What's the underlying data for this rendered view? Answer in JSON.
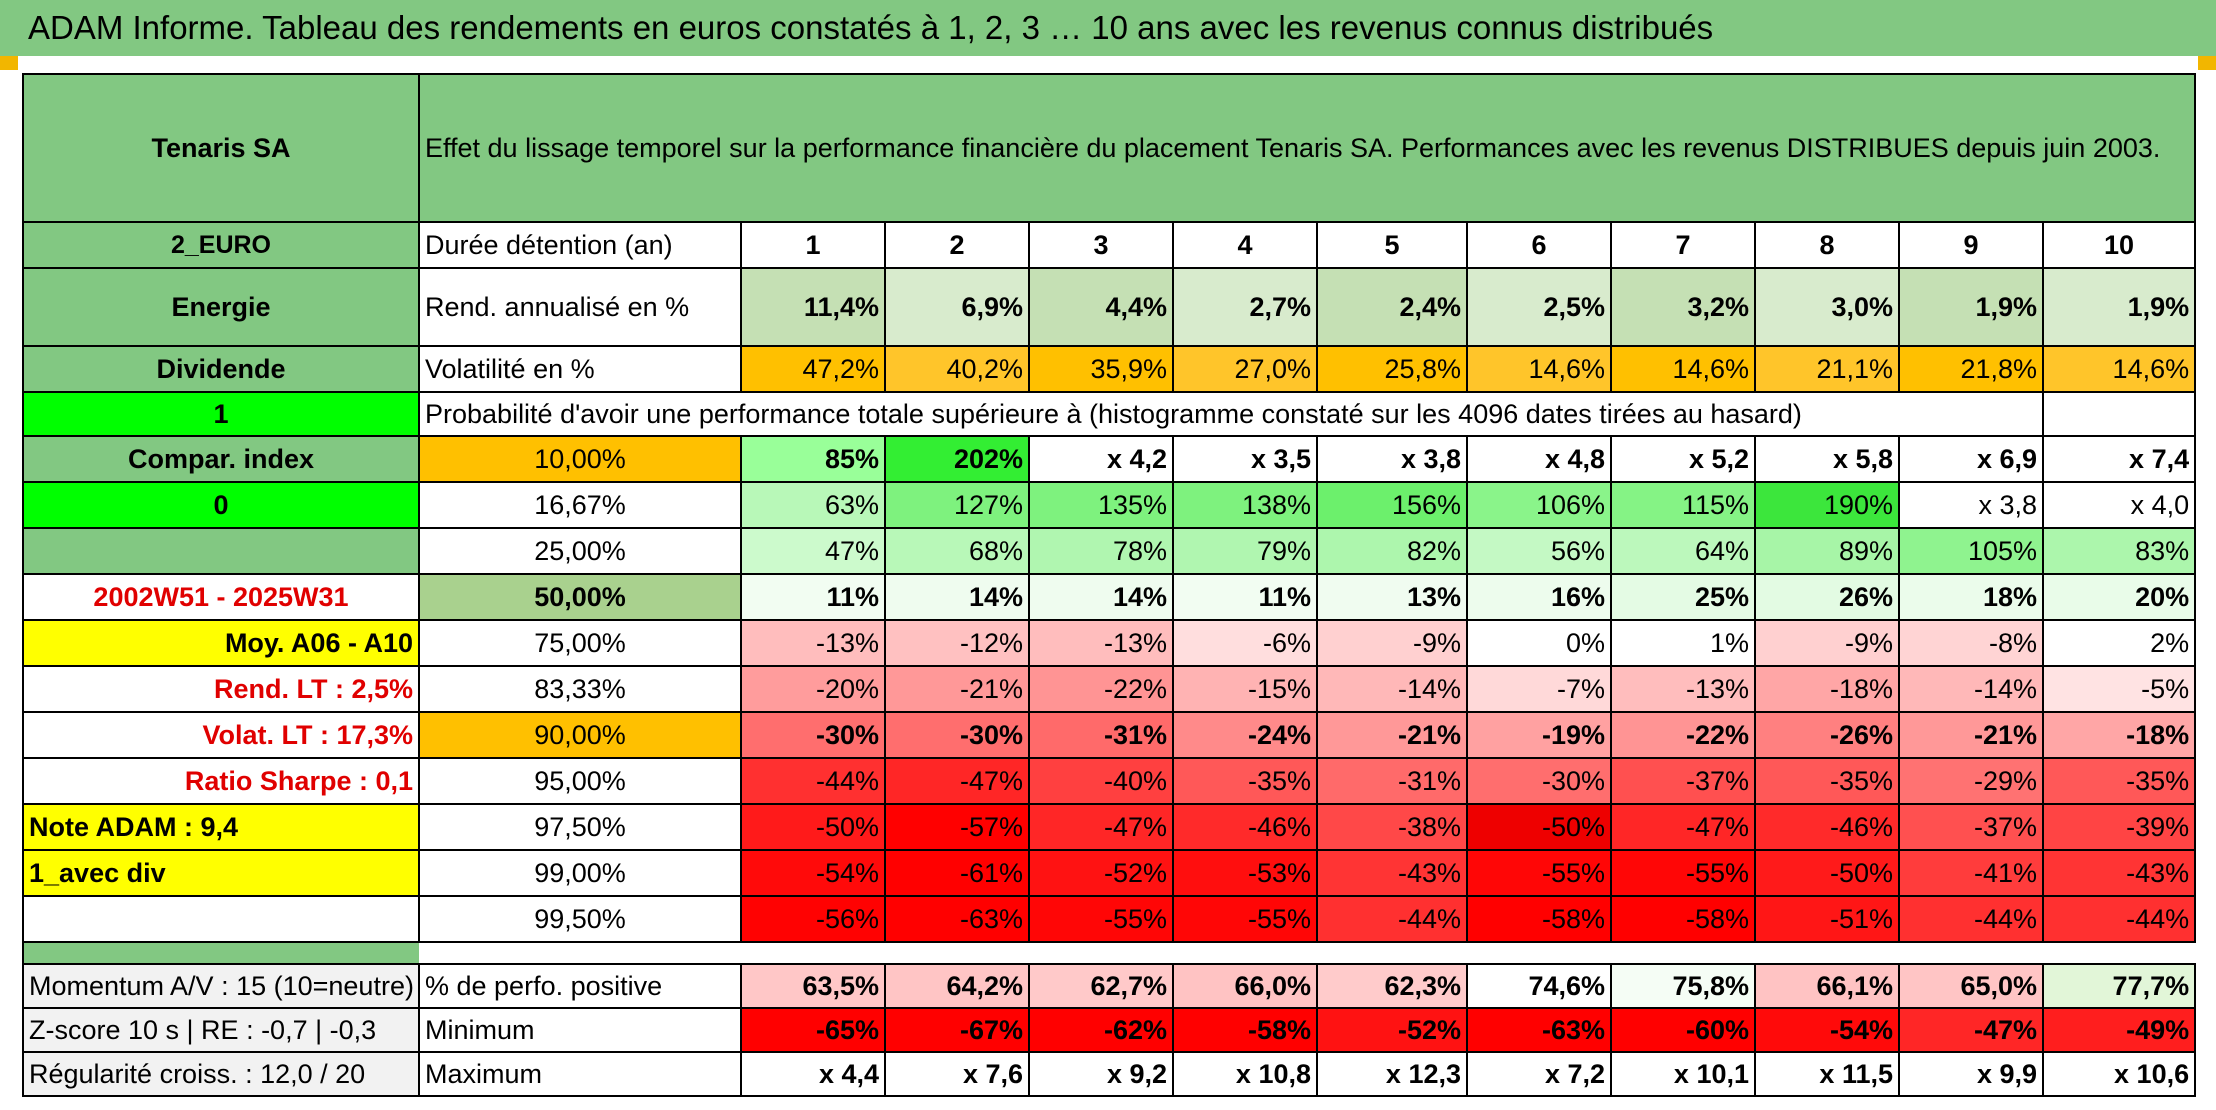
{
  "title": "ADAM Informe. Tableau des rendements en euros constatés à 1, 2, 3 … 10 ans avec les revenus connus distribués",
  "header": {
    "company": "Tenaris SA",
    "description": "Effet du lissage temporel sur la performance financière du placement Tenaris SA. Performances avec les revenus DISTRIBUES depuis juin 2003."
  },
  "side": {
    "currency": "2_EURO",
    "sector": "Energie",
    "dividend": "Dividende",
    "flag1": "1",
    "compar_index": "Compar. index",
    "flag0": "0",
    "period": "2002W51 - 2025W31",
    "moy": "Moy. A06 - A10",
    "rend_lt": "Rend. LT :    2,5%",
    "volat_lt": "Volat. LT :    17,3%",
    "sharpe": "Ratio Sharpe :    0,1",
    "note": "Note ADAM : 9,4",
    "avec_div": "1_avec div"
  },
  "row_labels": {
    "duration": "Durée détention (an)",
    "rend": "Rend. annualisé en %",
    "volat": "Volatilité en %",
    "prob_title": "Probabilité d'avoir une performance totale supérieure à (histogramme constaté sur les 4096 dates tirées au hasard)",
    "positive": "% de perfo. positive",
    "minimum": "Minimum",
    "maximum": "Maximum"
  },
  "durations": [
    "1",
    "2",
    "3",
    "4",
    "5",
    "6",
    "7",
    "8",
    "9",
    "10"
  ],
  "rend": [
    "11,4%",
    "6,9%",
    "4,4%",
    "2,7%",
    "2,4%",
    "2,5%",
    "3,2%",
    "3,0%",
    "1,9%",
    "1,9%"
  ],
  "volat": [
    "47,2%",
    "40,2%",
    "35,9%",
    "27,0%",
    "25,8%",
    "14,6%",
    "14,6%",
    "21,1%",
    "21,8%",
    "14,6%"
  ],
  "quantiles": [
    {
      "p": "10,00%",
      "values": [
        "85%",
        "202%",
        "x 4,2",
        "x 3,5",
        "x 3,8",
        "x 4,8",
        "x 5,2",
        "x 5,8",
        "x 6,9",
        "x 7,4"
      ],
      "colors": [
        "#99ff99",
        "#33ee33",
        "#ffffff",
        "#ffffff",
        "#ffffff",
        "#ffffff",
        "#ffffff",
        "#ffffff",
        "#ffffff",
        "#ffffff"
      ]
    },
    {
      "p": "16,67%",
      "values": [
        "63%",
        "127%",
        "135%",
        "138%",
        "156%",
        "106%",
        "115%",
        "190%",
        "x 3,8",
        "x 4,0"
      ],
      "colors": [
        "#b8f8b8",
        "#7ef27e",
        "#7ef27e",
        "#7ef27e",
        "#6cf06c",
        "#8af48a",
        "#85f385",
        "#3ce63c",
        "#ffffff",
        "#ffffff"
      ]
    },
    {
      "p": "25,00%",
      "values": [
        "47%",
        "68%",
        "78%",
        "79%",
        "82%",
        "56%",
        "64%",
        "89%",
        "105%",
        "83%"
      ],
      "colors": [
        "#ccfacc",
        "#b8f8b8",
        "#b0f6b0",
        "#b0f6b0",
        "#adf6ad",
        "#c4f9c4",
        "#bcf8bc",
        "#a7f5a7",
        "#8ff38f",
        "#acf6ac"
      ]
    },
    {
      "p": "50,00%",
      "values": [
        "11%",
        "14%",
        "14%",
        "11%",
        "13%",
        "16%",
        "25%",
        "26%",
        "18%",
        "20%"
      ],
      "colors": [
        "#f2fdf2",
        "#effcef",
        "#effcef",
        "#f2fdf2",
        "#f0fcf0",
        "#edfced",
        "#e4fbe4",
        "#e3fbe3",
        "#ebfceb",
        "#e9fce9"
      ]
    },
    {
      "p": "75,00%",
      "values": [
        "-13%",
        "-12%",
        "-13%",
        "-6%",
        "-9%",
        "0%",
        "1%",
        "-9%",
        "-8%",
        "2%"
      ],
      "colors": [
        "#ffbdbd",
        "#ffc1c1",
        "#ffbdbd",
        "#ffdede",
        "#ffd0d0",
        "#ffffff",
        "#ffffff",
        "#ffd0d0",
        "#ffd4d4",
        "#ffffff"
      ]
    },
    {
      "p": "83,33%",
      "values": [
        "-20%",
        "-21%",
        "-22%",
        "-15%",
        "-14%",
        "-7%",
        "-13%",
        "-18%",
        "-14%",
        "-5%"
      ],
      "colors": [
        "#ff9c9c",
        "#ff9898",
        "#ff9494",
        "#ffb3b3",
        "#ffb8b8",
        "#ffd9d9",
        "#ffbdbd",
        "#ffa6a6",
        "#ffb8b8",
        "#ffe3e3"
      ]
    },
    {
      "p": "90,00%",
      "values": [
        "-30%",
        "-30%",
        "-31%",
        "-24%",
        "-21%",
        "-19%",
        "-22%",
        "-26%",
        "-21%",
        "-18%"
      ],
      "colors": [
        "#ff6e6e",
        "#ff6e6e",
        "#ff6a6a",
        "#ff8a8a",
        "#ff9898",
        "#ffa1a1",
        "#ff9494",
        "#ff8080",
        "#ff9898",
        "#ffa6a6"
      ]
    },
    {
      "p": "95,00%",
      "values": [
        "-44%",
        "-47%",
        "-40%",
        "-35%",
        "-31%",
        "-30%",
        "-37%",
        "-35%",
        "-29%",
        "-35%"
      ],
      "colors": [
        "#ff3030",
        "#ff2626",
        "#ff4040",
        "#ff5858",
        "#ff6a6a",
        "#ff6e6e",
        "#ff5050",
        "#ff5858",
        "#ff7272",
        "#ff5858"
      ]
    },
    {
      "p": "97,50%",
      "values": [
        "-50%",
        "-57%",
        "-47%",
        "-46%",
        "-38%",
        "-50%",
        "-47%",
        "-46%",
        "-37%",
        "-39%"
      ],
      "colors": [
        "#ff1a1a",
        "#ff0000",
        "#ff2626",
        "#ff2a2a",
        "#ff4848",
        "#ee0000",
        "#ff2626",
        "#ff2a2a",
        "#ff5050",
        "#ff4444"
      ]
    },
    {
      "p": "99,00%",
      "values": [
        "-54%",
        "-61%",
        "-52%",
        "-53%",
        "-43%",
        "-55%",
        "-55%",
        "-50%",
        "-41%",
        "-43%"
      ],
      "colors": [
        "#ff0a0a",
        "#ff0000",
        "#ff1212",
        "#ff0e0e",
        "#ff3434",
        "#ff0606",
        "#ff0606",
        "#ff1a1a",
        "#ff3c3c",
        "#ff3434"
      ]
    },
    {
      "p": "99,50%",
      "values": [
        "-56%",
        "-63%",
        "-55%",
        "-55%",
        "-44%",
        "-58%",
        "-58%",
        "-51%",
        "-44%",
        "-44%"
      ],
      "colors": [
        "#ff0202",
        "#ff0000",
        "#ff0606",
        "#ff0606",
        "#ff3030",
        "#ff0000",
        "#ff0000",
        "#ff1616",
        "#ff3030",
        "#ff3030"
      ]
    }
  ],
  "bottom": {
    "momentum": "Momentum A/V : 15 (10=neutre)",
    "zscore": "Z-score 10 s | RE : -0,7 | -0,3",
    "regularite": "Régularité croiss. : 12,0 / 20",
    "positive": [
      "63,5%",
      "64,2%",
      "62,7%",
      "66,0%",
      "62,3%",
      "74,6%",
      "75,8%",
      "66,1%",
      "65,0%",
      "77,7%"
    ],
    "positive_colors": [
      "#ffc7c7",
      "#ffc5c5",
      "#ffc9c9",
      "#ffc3c3",
      "#ffcbcb",
      "#ffffff",
      "#f5fdf5",
      "#ffc3c3",
      "#ffc5c5",
      "#e2f6d8"
    ],
    "minimum": [
      "-65%",
      "-67%",
      "-62%",
      "-58%",
      "-52%",
      "-63%",
      "-60%",
      "-54%",
      "-47%",
      "-49%"
    ],
    "minimum_colors": [
      "#ff0000",
      "#ff0000",
      "#ff0000",
      "#ff0000",
      "#ff1212",
      "#ff0000",
      "#ff0000",
      "#ff0a0a",
      "#ff2626",
      "#ff1e1e"
    ],
    "maximum": [
      "x 4,4",
      "x 7,6",
      "x 9,2",
      "x 10,8",
      "x 12,3",
      "x 7,2",
      "x 10,1",
      "x 11,5",
      "x 9,9",
      "x 10,6"
    ]
  },
  "colors": {
    "header_green": "#82c882",
    "orange": "#ffc000",
    "yellow": "#ffff00",
    "bright_green": "#00ff00",
    "red_text": "#e00000"
  }
}
